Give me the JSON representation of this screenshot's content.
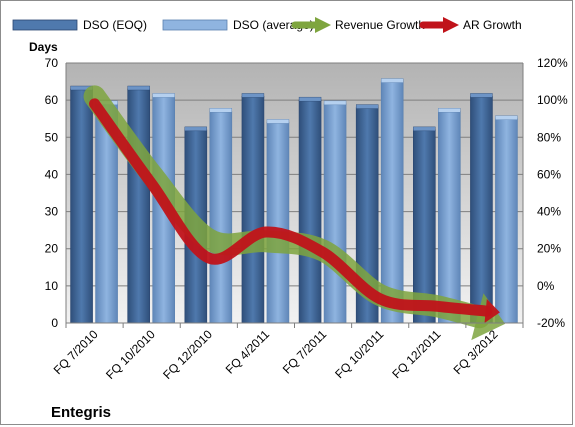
{
  "company_label": "Entegris",
  "colors": {
    "plot_top": "#b3b3b3",
    "plot_bottom": "#f2f2f2",
    "dso_eoq": "#4f79ad",
    "dso_eoq_dark": "#2f4f7a",
    "dso_avg": "#8fb4e0",
    "dso_avg_dark": "#5f86b8",
    "revenue_growth": "#7ea53e",
    "ar_growth": "#c0131a"
  },
  "chart_data": {
    "type": "bar",
    "categories": [
      "FQ 7/2010",
      "FQ 10/2010",
      "FQ 12/2010",
      "FQ 4/2011",
      "FQ 7/2011",
      "FQ 10/2011",
      "FQ 12/2011",
      "FQ 3/2012"
    ],
    "ylabel": "Days",
    "ylim": [
      0,
      70
    ],
    "yticks": [
      0,
      10,
      20,
      30,
      40,
      50,
      60,
      70
    ],
    "y2lim": [
      -20,
      120
    ],
    "y2ticks": [
      "-20%",
      "0%",
      "20%",
      "40%",
      "60%",
      "80%",
      "100%",
      "120%"
    ],
    "legend_position": "top",
    "series": [
      {
        "name": "DSO (EOQ)",
        "kind": "bar",
        "axis": "left",
        "values": [
          63,
          63,
          52,
          61,
          60,
          58,
          52,
          61
        ]
      },
      {
        "name": "DSO (average)",
        "kind": "bar",
        "axis": "left",
        "values": [
          59,
          61,
          57,
          54,
          59,
          65,
          57,
          55
        ]
      },
      {
        "name": "Revenue Growth",
        "kind": "line",
        "axis": "right",
        "unit": "%",
        "values": [
          102,
          60,
          25,
          24,
          19,
          -5,
          -11,
          -19
        ]
      },
      {
        "name": "AR Growth",
        "kind": "line",
        "axis": "right",
        "unit": "%",
        "values": [
          98,
          55,
          15,
          29,
          18,
          -7,
          -11,
          -14
        ]
      }
    ]
  }
}
